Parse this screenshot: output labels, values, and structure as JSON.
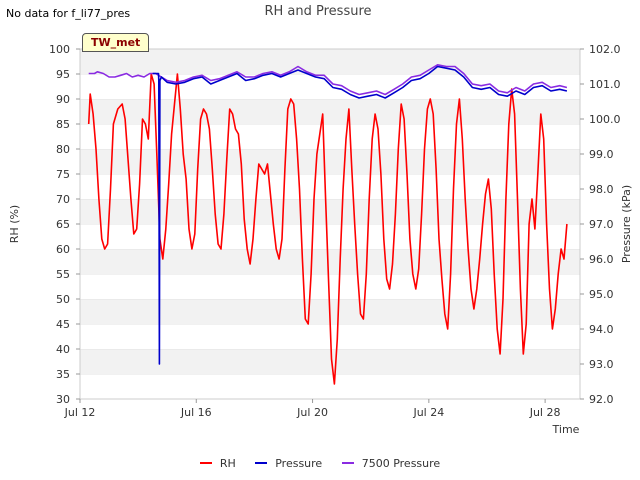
{
  "header": {
    "nodata_text": "No data for f_li77_pres",
    "badge": "TW_met"
  },
  "chart_data": {
    "type": "line",
    "title": "RH and Pressure",
    "xlabel": "Time",
    "ylabel_left": "RH (%)",
    "ylabel_right": "Pressure (kPa)",
    "x_unit": "days since Jul 12 00:00",
    "xlim": [
      0,
      17.2
    ],
    "x_ticks": [
      {
        "value": 0,
        "label": "Jul 12"
      },
      {
        "value": 4,
        "label": "Jul 16"
      },
      {
        "value": 8,
        "label": "Jul 20"
      },
      {
        "value": 12,
        "label": "Jul 24"
      },
      {
        "value": 16,
        "label": "Jul 28"
      }
    ],
    "y_left": {
      "lim": [
        30,
        100
      ],
      "ticks": [
        30,
        35,
        40,
        45,
        50,
        55,
        60,
        65,
        70,
        75,
        80,
        85,
        90,
        95,
        100
      ]
    },
    "y_right": {
      "lim": [
        92.0,
        102.0
      ],
      "ticks": [
        92.0,
        93.0,
        94.0,
        95.0,
        96.0,
        97.0,
        98.0,
        99.0,
        100.0,
        101.0,
        102.0
      ]
    },
    "grid": "horizontal bands",
    "legend_position": "bottom-center",
    "series": [
      {
        "name": "RH",
        "color": "#ff0000",
        "axis": "left",
        "points": [
          [
            0.3,
            85
          ],
          [
            0.35,
            91
          ],
          [
            0.45,
            87
          ],
          [
            0.55,
            80
          ],
          [
            0.65,
            70
          ],
          [
            0.75,
            62
          ],
          [
            0.85,
            60
          ],
          [
            0.95,
            61
          ],
          [
            1.05,
            72
          ],
          [
            1.15,
            85
          ],
          [
            1.3,
            88
          ],
          [
            1.45,
            89
          ],
          [
            1.55,
            86
          ],
          [
            1.65,
            78
          ],
          [
            1.75,
            70
          ],
          [
            1.85,
            63
          ],
          [
            1.95,
            64
          ],
          [
            2.05,
            73
          ],
          [
            2.15,
            86
          ],
          [
            2.25,
            85
          ],
          [
            2.35,
            82
          ],
          [
            2.45,
            95
          ],
          [
            2.55,
            93
          ],
          [
            2.65,
            78
          ],
          [
            2.75,
            62
          ],
          [
            2.85,
            58
          ],
          [
            2.95,
            64
          ],
          [
            3.05,
            73
          ],
          [
            3.15,
            83
          ],
          [
            3.25,
            89
          ],
          [
            3.35,
            95
          ],
          [
            3.45,
            88
          ],
          [
            3.55,
            79
          ],
          [
            3.65,
            74
          ],
          [
            3.75,
            64
          ],
          [
            3.85,
            60
          ],
          [
            3.95,
            63
          ],
          [
            4.05,
            76
          ],
          [
            4.15,
            86
          ],
          [
            4.25,
            88
          ],
          [
            4.35,
            87
          ],
          [
            4.45,
            84
          ],
          [
            4.55,
            76
          ],
          [
            4.65,
            67
          ],
          [
            4.75,
            61
          ],
          [
            4.85,
            60
          ],
          [
            4.95,
            67
          ],
          [
            5.05,
            78
          ],
          [
            5.15,
            88
          ],
          [
            5.25,
            87
          ],
          [
            5.35,
            84
          ],
          [
            5.45,
            83
          ],
          [
            5.55,
            77
          ],
          [
            5.65,
            66
          ],
          [
            5.75,
            60
          ],
          [
            5.85,
            57
          ],
          [
            5.95,
            62
          ],
          [
            6.05,
            70
          ],
          [
            6.15,
            77
          ],
          [
            6.25,
            76
          ],
          [
            6.35,
            75
          ],
          [
            6.45,
            77
          ],
          [
            6.55,
            71
          ],
          [
            6.65,
            65
          ],
          [
            6.75,
            60
          ],
          [
            6.85,
            58
          ],
          [
            6.95,
            62
          ],
          [
            7.05,
            76
          ],
          [
            7.15,
            88
          ],
          [
            7.25,
            90
          ],
          [
            7.35,
            89
          ],
          [
            7.45,
            82
          ],
          [
            7.55,
            72
          ],
          [
            7.65,
            58
          ],
          [
            7.75,
            46
          ],
          [
            7.85,
            45
          ],
          [
            7.95,
            55
          ],
          [
            8.05,
            70
          ],
          [
            8.15,
            79
          ],
          [
            8.25,
            83
          ],
          [
            8.35,
            87
          ],
          [
            8.45,
            70
          ],
          [
            8.55,
            54
          ],
          [
            8.65,
            38
          ],
          [
            8.75,
            33
          ],
          [
            8.85,
            42
          ],
          [
            8.95,
            58
          ],
          [
            9.05,
            72
          ],
          [
            9.15,
            82
          ],
          [
            9.25,
            88
          ],
          [
            9.35,
            76
          ],
          [
            9.45,
            65
          ],
          [
            9.55,
            55
          ],
          [
            9.65,
            47
          ],
          [
            9.75,
            46
          ],
          [
            9.85,
            55
          ],
          [
            9.95,
            70
          ],
          [
            10.05,
            82
          ],
          [
            10.15,
            87
          ],
          [
            10.25,
            84
          ],
          [
            10.35,
            75
          ],
          [
            10.45,
            62
          ],
          [
            10.55,
            54
          ],
          [
            10.65,
            52
          ],
          [
            10.75,
            57
          ],
          [
            10.85,
            67
          ],
          [
            10.95,
            80
          ],
          [
            11.05,
            89
          ],
          [
            11.15,
            86
          ],
          [
            11.25,
            75
          ],
          [
            11.35,
            62
          ],
          [
            11.45,
            55
          ],
          [
            11.55,
            52
          ],
          [
            11.65,
            56
          ],
          [
            11.75,
            67
          ],
          [
            11.85,
            80
          ],
          [
            11.95,
            88
          ],
          [
            12.05,
            90
          ],
          [
            12.15,
            87
          ],
          [
            12.25,
            76
          ],
          [
            12.35,
            62
          ],
          [
            12.45,
            54
          ],
          [
            12.55,
            47
          ],
          [
            12.65,
            44
          ],
          [
            12.75,
            55
          ],
          [
            12.85,
            72
          ],
          [
            12.95,
            85
          ],
          [
            13.05,
            90
          ],
          [
            13.15,
            82
          ],
          [
            13.25,
            70
          ],
          [
            13.35,
            60
          ],
          [
            13.45,
            52
          ],
          [
            13.55,
            48
          ],
          [
            13.65,
            52
          ],
          [
            13.75,
            58
          ],
          [
            13.85,
            65
          ],
          [
            13.95,
            71
          ],
          [
            14.05,
            74
          ],
          [
            14.15,
            68
          ],
          [
            14.25,
            55
          ],
          [
            14.35,
            44
          ],
          [
            14.45,
            39
          ],
          [
            14.55,
            50
          ],
          [
            14.65,
            70
          ],
          [
            14.75,
            85
          ],
          [
            14.85,
            92
          ],
          [
            14.95,
            87
          ],
          [
            15.05,
            70
          ],
          [
            15.15,
            52
          ],
          [
            15.25,
            39
          ],
          [
            15.35,
            45
          ],
          [
            15.45,
            65
          ],
          [
            15.55,
            70
          ],
          [
            15.65,
            64
          ],
          [
            15.75,
            75
          ],
          [
            15.85,
            87
          ],
          [
            15.95,
            82
          ],
          [
            16.05,
            65
          ],
          [
            16.15,
            52
          ],
          [
            16.25,
            44
          ],
          [
            16.35,
            48
          ],
          [
            16.45,
            55
          ],
          [
            16.55,
            60
          ],
          [
            16.65,
            58
          ],
          [
            16.75,
            65
          ]
        ]
      },
      {
        "name": "Pressure",
        "color": "#0000cc",
        "axis": "right",
        "points": [
          [
            2.5,
            101.3
          ],
          [
            2.6,
            101.3
          ],
          [
            2.7,
            101.3
          ],
          [
            2.71,
            101.1
          ],
          [
            2.73,
            93.0
          ],
          [
            2.75,
            101.1
          ],
          [
            2.8,
            101.2
          ],
          [
            3.0,
            101.05
          ],
          [
            3.3,
            101.0
          ],
          [
            3.6,
            101.05
          ],
          [
            3.9,
            101.15
          ],
          [
            4.2,
            101.2
          ],
          [
            4.5,
            101.0
          ],
          [
            4.8,
            101.1
          ],
          [
            5.1,
            101.2
          ],
          [
            5.4,
            101.3
          ],
          [
            5.7,
            101.1
          ],
          [
            6.0,
            101.15
          ],
          [
            6.3,
            101.25
          ],
          [
            6.6,
            101.3
          ],
          [
            6.9,
            101.2
          ],
          [
            7.2,
            101.3
          ],
          [
            7.5,
            101.4
          ],
          [
            7.8,
            101.3
          ],
          [
            8.1,
            101.2
          ],
          [
            8.4,
            101.15
          ],
          [
            8.7,
            100.9
          ],
          [
            9.0,
            100.85
          ],
          [
            9.3,
            100.7
          ],
          [
            9.6,
            100.6
          ],
          [
            9.9,
            100.65
          ],
          [
            10.2,
            100.7
          ],
          [
            10.5,
            100.6
          ],
          [
            10.8,
            100.75
          ],
          [
            11.1,
            100.9
          ],
          [
            11.4,
            101.1
          ],
          [
            11.7,
            101.15
          ],
          [
            12.0,
            101.3
          ],
          [
            12.3,
            101.5
          ],
          [
            12.6,
            101.45
          ],
          [
            12.9,
            101.4
          ],
          [
            13.2,
            101.2
          ],
          [
            13.5,
            100.9
          ],
          [
            13.8,
            100.85
          ],
          [
            14.1,
            100.9
          ],
          [
            14.4,
            100.7
          ],
          [
            14.7,
            100.65
          ],
          [
            15.0,
            100.8
          ],
          [
            15.3,
            100.7
          ],
          [
            15.6,
            100.9
          ],
          [
            15.9,
            100.95
          ],
          [
            16.2,
            100.8
          ],
          [
            16.5,
            100.85
          ],
          [
            16.75,
            100.8
          ]
        ]
      },
      {
        "name": "7500 Pressure",
        "color": "#8a2be2",
        "axis": "right",
        "points": [
          [
            0.3,
            101.3
          ],
          [
            0.5,
            101.3
          ],
          [
            0.6,
            101.35
          ],
          [
            0.8,
            101.3
          ],
          [
            1.0,
            101.2
          ],
          [
            1.2,
            101.2
          ],
          [
            1.4,
            101.25
          ],
          [
            1.6,
            101.3
          ],
          [
            1.8,
            101.2
          ],
          [
            2.0,
            101.25
          ],
          [
            2.2,
            101.2
          ],
          [
            2.4,
            101.3
          ],
          [
            2.6,
            101.3
          ],
          [
            2.8,
            101.2
          ],
          [
            3.0,
            101.1
          ],
          [
            3.3,
            101.05
          ],
          [
            3.6,
            101.1
          ],
          [
            3.9,
            101.2
          ],
          [
            4.2,
            101.25
          ],
          [
            4.5,
            101.1
          ],
          [
            4.8,
            101.15
          ],
          [
            5.1,
            101.25
          ],
          [
            5.4,
            101.35
          ],
          [
            5.7,
            101.2
          ],
          [
            6.0,
            101.2
          ],
          [
            6.3,
            101.3
          ],
          [
            6.6,
            101.35
          ],
          [
            6.9,
            101.25
          ],
          [
            7.2,
            101.35
          ],
          [
            7.5,
            101.5
          ],
          [
            7.8,
            101.35
          ],
          [
            8.1,
            101.25
          ],
          [
            8.4,
            101.25
          ],
          [
            8.7,
            101.0
          ],
          [
            9.0,
            100.95
          ],
          [
            9.3,
            100.8
          ],
          [
            9.6,
            100.7
          ],
          [
            9.9,
            100.75
          ],
          [
            10.2,
            100.8
          ],
          [
            10.5,
            100.7
          ],
          [
            10.8,
            100.85
          ],
          [
            11.1,
            101.0
          ],
          [
            11.4,
            101.2
          ],
          [
            11.7,
            101.25
          ],
          [
            12.0,
            101.4
          ],
          [
            12.3,
            101.55
          ],
          [
            12.6,
            101.5
          ],
          [
            12.9,
            101.5
          ],
          [
            13.2,
            101.3
          ],
          [
            13.5,
            101.0
          ],
          [
            13.8,
            100.95
          ],
          [
            14.1,
            101.0
          ],
          [
            14.4,
            100.8
          ],
          [
            14.7,
            100.75
          ],
          [
            15.0,
            100.9
          ],
          [
            15.3,
            100.8
          ],
          [
            15.6,
            101.0
          ],
          [
            15.9,
            101.05
          ],
          [
            16.2,
            100.9
          ],
          [
            16.5,
            100.95
          ],
          [
            16.75,
            100.9
          ]
        ]
      }
    ]
  }
}
